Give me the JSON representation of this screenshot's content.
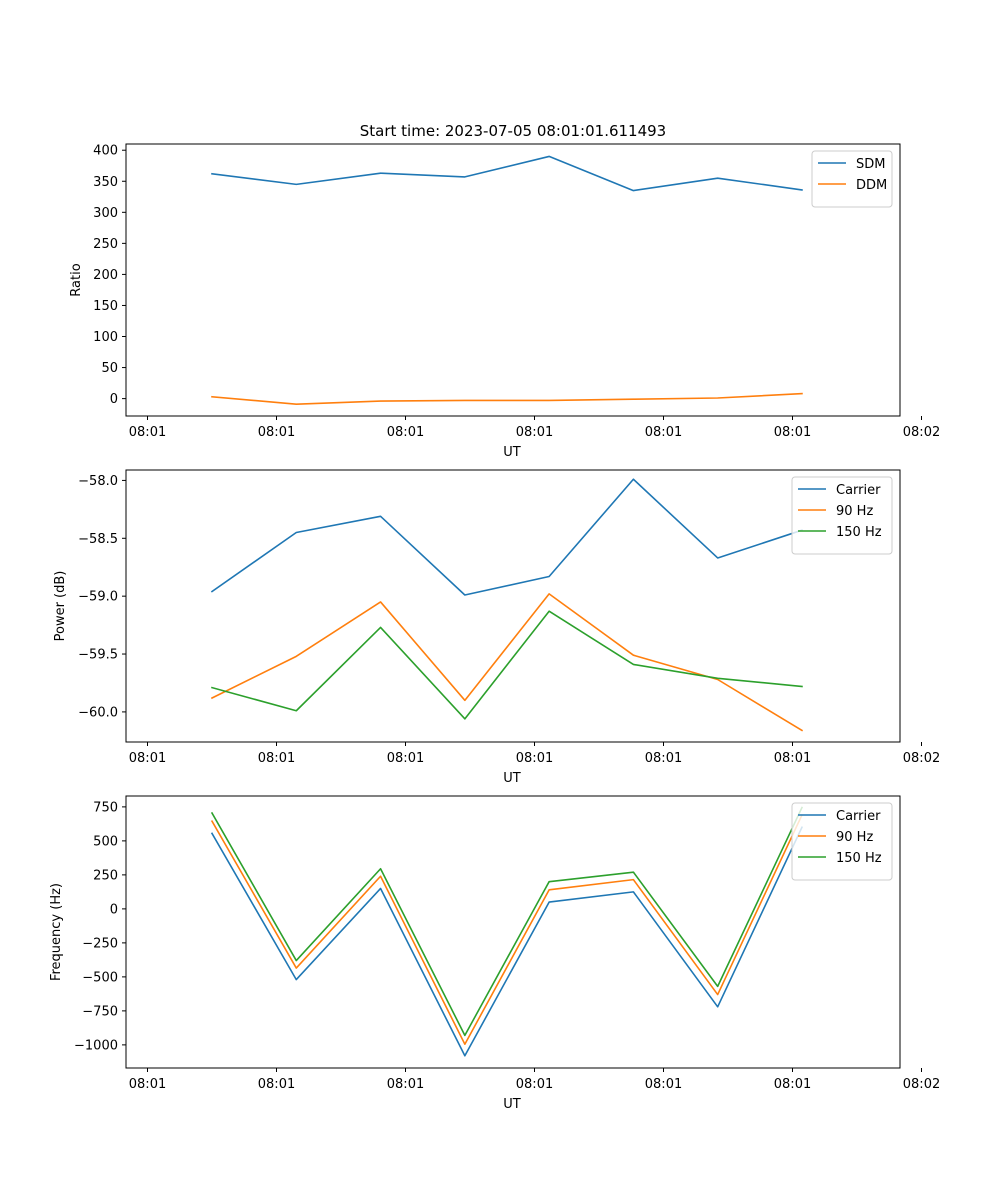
{
  "figure_title": "Start time: 2023-07-05 08:01:01.611493",
  "chart_data": [
    {
      "type": "line",
      "title": "Start time: 2023-07-05 08:01:01.611493",
      "xlabel": "UT",
      "ylabel": "Ratio",
      "xlim": [
        -0.25,
        8.75
      ],
      "ylim": [
        -28,
        410
      ],
      "x_tick_positions": [
        0,
        1.5,
        3,
        4.5,
        6,
        7.5,
        9
      ],
      "x_tick_labels": [
        "08:01",
        "08:01",
        "08:01",
        "08:01",
        "08:01",
        "08:01",
        "08:02"
      ],
      "yticks": [
        0,
        50,
        100,
        150,
        200,
        250,
        300,
        350,
        400
      ],
      "y_tick_labels": [
        "0",
        "50",
        "100",
        "150",
        "200",
        "250",
        "300",
        "350",
        "400"
      ],
      "legend_position": "upper right",
      "x": [
        0.75,
        1.73,
        2.71,
        3.69,
        4.67,
        5.65,
        6.63,
        7.61
      ],
      "series": [
        {
          "name": "SDM",
          "color": "#1f77b4",
          "values": [
            362,
            345,
            363,
            357,
            390,
            335,
            355,
            336
          ]
        },
        {
          "name": "DDM",
          "color": "#ff7f0e",
          "values": [
            3,
            -9,
            -4,
            -3,
            -3,
            -1,
            1,
            8
          ]
        }
      ]
    },
    {
      "type": "line",
      "title": "",
      "xlabel": "UT",
      "ylabel": "Power (dB)",
      "xlim": [
        -0.25,
        8.75
      ],
      "ylim": [
        -60.26,
        -57.91
      ],
      "x_tick_positions": [
        0,
        1.5,
        3,
        4.5,
        6,
        7.5,
        9
      ],
      "x_tick_labels": [
        "08:01",
        "08:01",
        "08:01",
        "08:01",
        "08:01",
        "08:01",
        "08:02"
      ],
      "yticks": [
        -60.0,
        -59.5,
        -59.0,
        -58.5,
        -58.0
      ],
      "y_tick_labels": [
        "−60.0",
        "−59.5",
        "−59.0",
        "−58.5",
        "−58.0"
      ],
      "legend_position": "upper right",
      "x": [
        0.75,
        1.73,
        2.71,
        3.69,
        4.67,
        5.65,
        6.63,
        7.61
      ],
      "series": [
        {
          "name": "Carrier",
          "color": "#1f77b4",
          "values": [
            -58.96,
            -58.45,
            -58.31,
            -58.99,
            -58.83,
            -57.99,
            -58.67,
            -58.43
          ]
        },
        {
          "name": "90 Hz",
          "color": "#ff7f0e",
          "values": [
            -59.88,
            -59.52,
            -59.05,
            -59.9,
            -58.98,
            -59.51,
            -59.72,
            -60.16
          ]
        },
        {
          "name": "150 Hz",
          "color": "#2ca02c",
          "values": [
            -59.79,
            -59.99,
            -59.27,
            -60.06,
            -59.13,
            -59.59,
            -59.71,
            -59.78
          ]
        }
      ]
    },
    {
      "type": "line",
      "title": "",
      "xlabel": "UT",
      "ylabel": "Frequency (Hz)",
      "xlim": [
        -0.25,
        8.75
      ],
      "ylim": [
        -1170,
        830
      ],
      "x_tick_positions": [
        0,
        1.5,
        3,
        4.5,
        6,
        7.5,
        9
      ],
      "x_tick_labels": [
        "08:01",
        "08:01",
        "08:01",
        "08:01",
        "08:01",
        "08:01",
        "08:02"
      ],
      "yticks": [
        -1000,
        -750,
        -500,
        -250,
        0,
        250,
        500,
        750
      ],
      "y_tick_labels": [
        "−1000",
        "−750",
        "−500",
        "−250",
        "0",
        "250",
        "500",
        "750"
      ],
      "legend_position": "upper right",
      "x": [
        0.75,
        1.73,
        2.71,
        3.69,
        4.67,
        5.65,
        6.63,
        7.61
      ],
      "series": [
        {
          "name": "Carrier",
          "color": "#1f77b4",
          "values": [
            555,
            -520,
            150,
            -1080,
            50,
            125,
            -720,
            600
          ]
        },
        {
          "name": "90 Hz",
          "color": "#ff7f0e",
          "values": [
            645,
            -435,
            240,
            -995,
            140,
            215,
            -630,
            690
          ]
        },
        {
          "name": "150 Hz",
          "color": "#2ca02c",
          "values": [
            705,
            -380,
            295,
            -930,
            200,
            270,
            -570,
            745
          ]
        }
      ]
    }
  ]
}
